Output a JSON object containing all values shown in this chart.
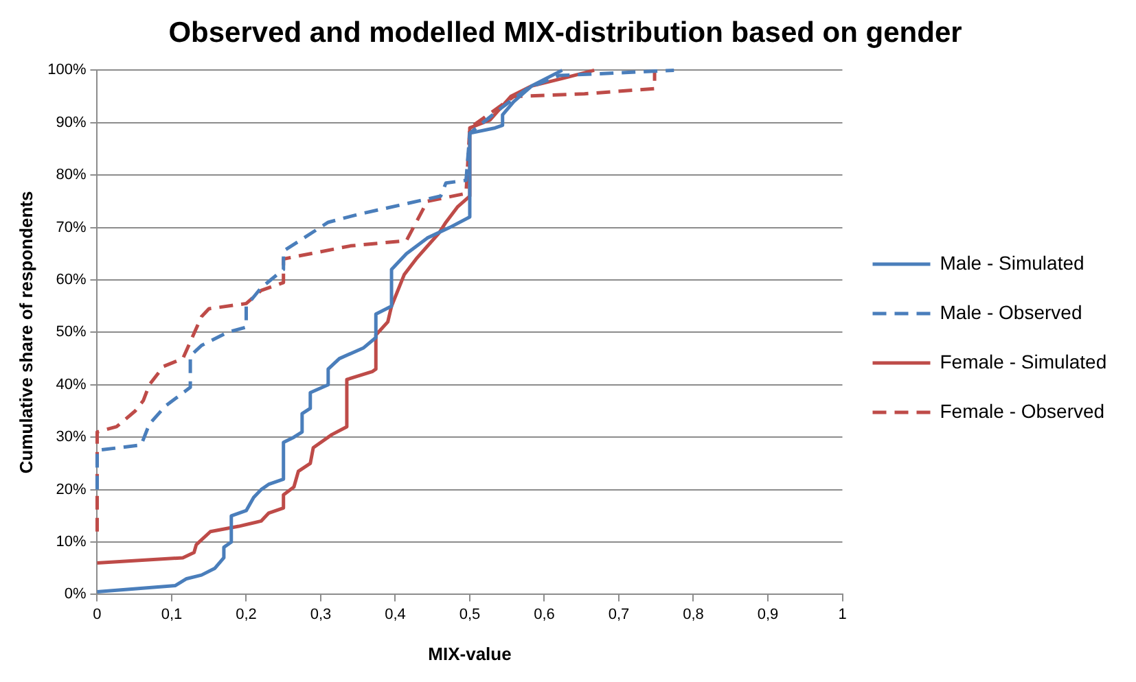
{
  "chart_data": {
    "type": "line",
    "title": "Observed and modelled MIX-distribution based on gender",
    "xlabel": "MIX-value",
    "ylabel": "Cumulative share of respondents",
    "xlim": [
      0,
      1
    ],
    "xticks": [
      0,
      {
        "value": 0.1,
        "label": "0,1"
      },
      {
        "value": 0.2,
        "label": "0,2"
      },
      {
        "value": 0.3,
        "label": "0,3"
      },
      {
        "value": 0.4,
        "label": "0,4"
      },
      {
        "value": 0.5,
        "label": "0,5"
      },
      {
        "value": 0.6,
        "label": "0,6"
      },
      {
        "value": 0.7,
        "label": "0,7"
      },
      {
        "value": 0.8,
        "label": "0,8"
      },
      {
        "value": 0.9,
        "label": "0,9"
      },
      1
    ],
    "ylim": [
      0,
      100
    ],
    "yticks": [
      {
        "value": 0,
        "label": "0%"
      },
      {
        "value": 10,
        "label": "10%"
      },
      {
        "value": 20,
        "label": "20%"
      },
      {
        "value": 30,
        "label": "30%"
      },
      {
        "value": 40,
        "label": "40%"
      },
      {
        "value": 50,
        "label": "50%"
      },
      {
        "value": 60,
        "label": "60%"
      },
      {
        "value": 70,
        "label": "70%"
      },
      {
        "value": 80,
        "label": "80%"
      },
      {
        "value": 90,
        "label": "90%"
      },
      {
        "value": 100,
        "label": "100%"
      }
    ],
    "grid": "y",
    "legend": "right",
    "marker": "none",
    "series": [
      {
        "name": "Male - Simulated",
        "color": "#4a7ebb",
        "line_style": "solid",
        "x": [
          0,
          0.105,
          0.12,
          0.14,
          0.158,
          0.17,
          0.17,
          0.18,
          0.18,
          0.2,
          0.21,
          0.22,
          0.23,
          0.25,
          0.25,
          0.264,
          0.275,
          0.275,
          0.286,
          0.286,
          0.31,
          0.31,
          0.325,
          0.357,
          0.374,
          0.374,
          0.395,
          0.395,
          0.415,
          0.443,
          0.473,
          0.5,
          0.5,
          0.534,
          0.544,
          0.544,
          0.559,
          0.583,
          0.624
        ],
        "values": [
          0.5,
          1.7,
          3,
          3.7,
          5,
          7,
          9,
          10,
          15,
          16,
          18.5,
          20,
          21,
          22,
          29,
          30,
          31,
          34.5,
          35.5,
          38.5,
          40,
          43,
          45,
          47,
          49,
          53.5,
          55,
          62,
          65,
          68,
          70,
          72,
          88,
          89,
          89.5,
          91.5,
          94,
          97,
          100
        ]
      },
      {
        "name": "Male - Observed",
        "color": "#4a7ebb",
        "line_style": "dashed",
        "x": [
          0,
          0,
          0.059,
          0.07,
          0.092,
          0.125,
          0.125,
          0.14,
          0.175,
          0.2,
          0.2,
          0.22,
          0.25,
          0.25,
          0.31,
          0.35,
          0.461,
          0.468,
          0.495,
          0.5,
          0.544,
          0.577,
          0.62,
          0.7,
          0.774
        ],
        "values": [
          20,
          27.5,
          28.5,
          32.5,
          36,
          39.5,
          45.5,
          47.5,
          50,
          51,
          55,
          58.5,
          62,
          65.5,
          71,
          72.5,
          76,
          78.5,
          79,
          88,
          93,
          96.5,
          99,
          99.5,
          100
        ]
      },
      {
        "name": "Female - Simulated",
        "color": "#be4b48",
        "line_style": "solid",
        "x": [
          0,
          0.115,
          0.13,
          0.133,
          0.152,
          0.19,
          0.22,
          0.23,
          0.25,
          0.25,
          0.264,
          0.27,
          0.286,
          0.29,
          0.315,
          0.335,
          0.335,
          0.369,
          0.374,
          0.374,
          0.39,
          0.395,
          0.412,
          0.428,
          0.459,
          0.468,
          0.484,
          0.5,
          0.5,
          0.527,
          0.555,
          0.583,
          0.626,
          0.667
        ],
        "values": [
          6,
          7,
          8,
          9.5,
          12,
          13,
          14,
          15.5,
          16.5,
          19,
          20.5,
          23.5,
          25,
          28,
          30.5,
          32,
          41,
          42.5,
          43,
          49.5,
          52,
          55,
          61,
          64,
          69,
          71,
          74,
          76,
          89,
          90.5,
          95,
          97,
          98.5,
          100
        ]
      },
      {
        "name": "Female - Observed",
        "color": "#be4b48",
        "line_style": "dashed",
        "x": [
          0,
          0,
          0.026,
          0.051,
          0.062,
          0.07,
          0.089,
          0.115,
          0.14,
          0.15,
          0.2,
          0.22,
          0.25,
          0.25,
          0.34,
          0.415,
          0.443,
          0.495,
          0.5,
          0.559,
          0.654,
          0.748,
          0.748
        ],
        "values": [
          12,
          31,
          32,
          35,
          37,
          40,
          43.5,
          45,
          53,
          54.5,
          55.5,
          58,
          59.5,
          64,
          66.5,
          67.5,
          75,
          76.5,
          89,
          95,
          95.5,
          96.5,
          100
        ]
      }
    ]
  }
}
